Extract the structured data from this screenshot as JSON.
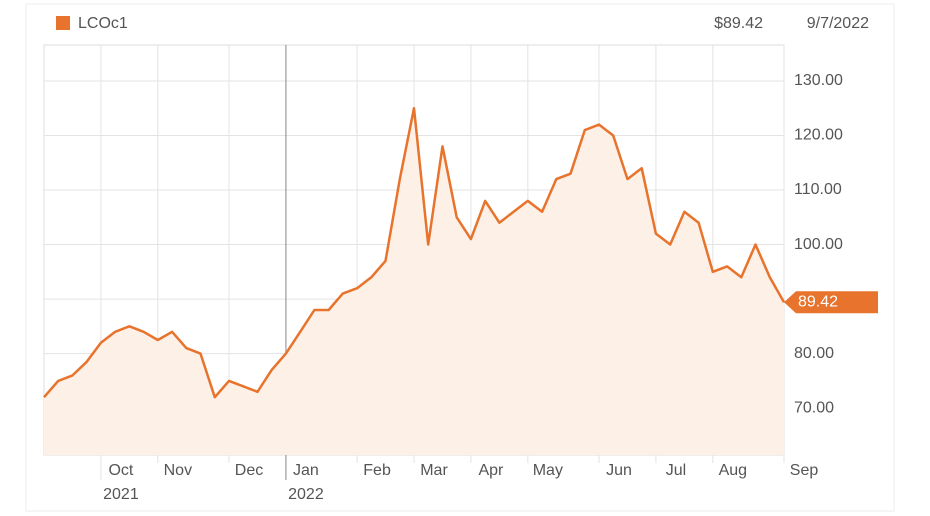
{
  "chart_data": {
    "type": "line",
    "series": [
      {
        "name": "LCOc1",
        "color": "#e8732c",
        "fill": "#fdf0e7",
        "values": [
          72,
          75,
          76,
          78.5,
          82,
          84,
          85,
          84,
          82.5,
          84,
          81,
          80,
          72,
          75,
          74,
          73,
          77,
          80,
          84,
          88,
          88,
          91,
          92,
          94,
          97,
          112,
          125,
          100,
          118,
          105,
          101,
          108,
          104,
          106,
          108,
          106,
          112,
          113,
          121,
          122,
          120,
          112,
          114,
          102,
          100,
          106,
          104,
          95,
          96,
          94,
          100,
          94,
          89.42
        ],
        "value_labels": [
          null,
          null,
          null,
          null,
          null,
          null,
          null,
          null,
          null,
          null,
          null,
          null,
          null,
          null,
          null,
          null,
          null,
          null,
          null,
          null,
          null,
          null,
          null,
          null,
          null,
          null,
          null,
          null,
          null,
          null,
          null,
          null,
          null,
          null,
          null,
          null,
          null,
          null,
          null,
          null,
          null,
          null,
          null,
          null,
          null,
          null,
          null,
          null,
          null,
          null,
          null,
          null,
          "89.42"
        ]
      }
    ],
    "categories": [
      null,
      null,
      null,
      null,
      "Oct",
      null,
      null,
      null,
      "Nov",
      null,
      null,
      null,
      null,
      "Dec",
      null,
      null,
      null,
      "Jan",
      null,
      null,
      null,
      null,
      "Feb",
      null,
      null,
      null,
      "Mar",
      null,
      null,
      null,
      "Apr",
      null,
      null,
      null,
      "May",
      null,
      null,
      null,
      null,
      "Jun",
      null,
      null,
      null,
      "Jul",
      null,
      null,
      null,
      "Aug",
      null,
      null,
      null,
      null,
      "Sep"
    ],
    "category_years": [
      null,
      null,
      null,
      null,
      "2021",
      null,
      null,
      null,
      null,
      null,
      null,
      null,
      null,
      null,
      null,
      null,
      null,
      "2022",
      null,
      null,
      null,
      null,
      null,
      null,
      null,
      null,
      null,
      null,
      null,
      null,
      null,
      null,
      null,
      null,
      null,
      null,
      null,
      null,
      null,
      null,
      null,
      null,
      null,
      null,
      null,
      null,
      null,
      null,
      null,
      null,
      null,
      null,
      null
    ],
    "price": "$89.42",
    "date": "9/7/2022",
    "ylim": [
      61.4,
      136.6
    ],
    "yticks": [
      {
        "value": 70,
        "label": "70.00"
      },
      {
        "value": 80,
        "label": "80.00"
      },
      {
        "value": 90,
        "label": "90.00"
      },
      {
        "value": 100,
        "label": "100.00"
      },
      {
        "value": 110,
        "label": "110.00"
      },
      {
        "value": 120,
        "label": "120.00"
      },
      {
        "value": 130,
        "label": "130.00"
      }
    ],
    "grid": true
  }
}
